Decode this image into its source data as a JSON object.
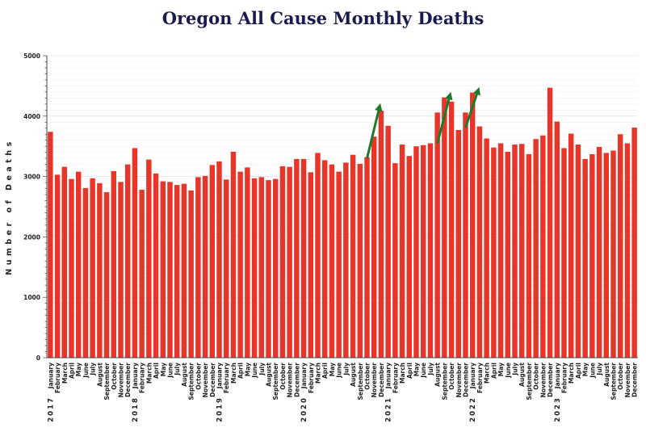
{
  "chart_data": {
    "type": "bar",
    "title": "Oregon All Cause Monthly Deaths",
    "xlabel": "",
    "ylabel": "Number of Deaths",
    "ylim": [
      0,
      5000
    ],
    "yticks": [
      0,
      1000,
      2000,
      3000,
      4000,
      5000
    ],
    "grid": true,
    "bar_color": "#e8352a",
    "arrow_color": "#1d7a2a",
    "year_labels": [
      "2017",
      "2018",
      "2019",
      "2020",
      "2021",
      "2022",
      "2023"
    ],
    "categories": [
      "January",
      "February",
      "March",
      "April",
      "May",
      "June",
      "July",
      "August",
      "September",
      "October",
      "November",
      "December",
      "January",
      "February",
      "March",
      "April",
      "May",
      "June",
      "July",
      "August",
      "September",
      "October",
      "November",
      "December",
      "January",
      "February",
      "March",
      "April",
      "May",
      "June",
      "July",
      "August",
      "September",
      "October",
      "November",
      "December",
      "January",
      "February",
      "March",
      "April",
      "May",
      "June",
      "July",
      "August",
      "September",
      "October",
      "November",
      "December",
      "January",
      "February",
      "March",
      "April",
      "May",
      "June",
      "July",
      "August",
      "September",
      "October",
      "November",
      "December",
      "January",
      "February",
      "March",
      "April",
      "May",
      "June",
      "July",
      "August",
      "September",
      "October",
      "November",
      "December",
      "January",
      "February",
      "March",
      "April",
      "May",
      "June",
      "July",
      "August",
      "September",
      "October",
      "November",
      "December"
    ],
    "values": [
      3740,
      3030,
      3160,
      2960,
      3080,
      2810,
      2970,
      2890,
      2740,
      3090,
      2910,
      3200,
      3470,
      2780,
      3280,
      3050,
      2920,
      2910,
      2860,
      2880,
      2770,
      2990,
      3010,
      3190,
      3250,
      2950,
      3410,
      3080,
      3150,
      2970,
      2990,
      2940,
      2960,
      3170,
      3160,
      3290,
      3290,
      3070,
      3390,
      3270,
      3200,
      3080,
      3230,
      3360,
      3210,
      3320,
      3660,
      4090,
      3840,
      3220,
      3530,
      3340,
      3500,
      3520,
      3550,
      4060,
      4310,
      4240,
      3770,
      4060,
      4390,
      3830,
      3630,
      3480,
      3550,
      3410,
      3530,
      3540,
      3370,
      3620,
      3680,
      4470,
      3910,
      3470,
      3710,
      3530,
      3290,
      3370,
      3490,
      3390,
      3430,
      3700,
      3550,
      3810
    ]
  }
}
